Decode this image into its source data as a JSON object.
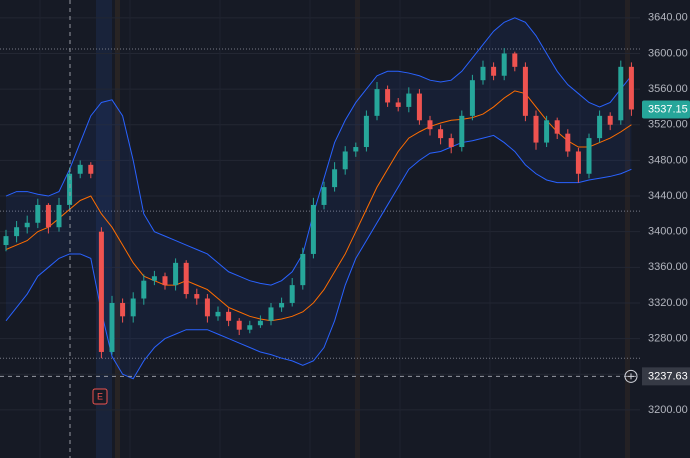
{
  "chart_data": {
    "type": "candlestick",
    "ylim": [
      3146,
      3660
    ],
    "yticks": [
      {
        "value": 3200,
        "label": "3200.00"
      },
      {
        "value": 3240,
        "label": "3240.00"
      },
      {
        "value": 3280,
        "label": "3280.00"
      },
      {
        "value": 3320,
        "label": "3320.00"
      },
      {
        "value": 3360,
        "label": "3360.00"
      },
      {
        "value": 3400,
        "label": "3400.00"
      },
      {
        "value": 3440,
        "label": "3440.00"
      },
      {
        "value": 3480,
        "label": "3480.00"
      },
      {
        "value": 3520,
        "label": "3520.00"
      },
      {
        "value": 3560,
        "label": "3560.00"
      },
      {
        "value": 3600,
        "label": "3600.00"
      },
      {
        "value": 3640,
        "label": "3640.00"
      }
    ],
    "grid": true,
    "up_color": "#26a69a",
    "down_color": "#ef5350",
    "open": [
      3385,
      3395,
      3405,
      3410,
      3430,
      3405,
      3430,
      3465,
      3475,
      3400,
      3265,
      3320,
      3305,
      3325,
      3345,
      3350,
      3340,
      3365,
      3330,
      3325,
      3305,
      3310,
      3300,
      3290,
      3295,
      3300,
      3315,
      3320,
      3340,
      3375,
      3430,
      3450,
      3470,
      3490,
      3495,
      3530,
      3560,
      3545,
      3540,
      3555,
      3525,
      3515,
      3505,
      3495,
      3530,
      3570,
      3585,
      3575,
      3600,
      3585,
      3530,
      3500,
      3525,
      3510,
      3490,
      3465,
      3505,
      3530,
      3525,
      3585
    ],
    "high": [
      3402,
      3412,
      3418,
      3437,
      3432,
      3438,
      3472,
      3480,
      3478,
      3405,
      3328,
      3325,
      3332,
      3352,
      3356,
      3354,
      3370,
      3368,
      3336,
      3330,
      3316,
      3314,
      3303,
      3300,
      3306,
      3320,
      3326,
      3348,
      3382,
      3438,
      3456,
      3478,
      3496,
      3500,
      3536,
      3568,
      3564,
      3550,
      3562,
      3560,
      3530,
      3520,
      3510,
      3536,
      3576,
      3592,
      3590,
      3606,
      3602,
      3590,
      3536,
      3530,
      3528,
      3515,
      3494,
      3510,
      3536,
      3534,
      3592,
      3590
    ],
    "low": [
      3378,
      3388,
      3398,
      3404,
      3398,
      3400,
      3425,
      3460,
      3460,
      3258,
      3262,
      3298,
      3298,
      3318,
      3340,
      3335,
      3334,
      3325,
      3318,
      3298,
      3300,
      3294,
      3284,
      3286,
      3292,
      3295,
      3310,
      3316,
      3335,
      3370,
      3425,
      3445,
      3464,
      3484,
      3490,
      3525,
      3540,
      3535,
      3534,
      3520,
      3508,
      3498,
      3488,
      3490,
      3525,
      3565,
      3570,
      3570,
      3580,
      3524,
      3492,
      3495,
      3504,
      3484,
      3455,
      3460,
      3500,
      3514,
      3520,
      3530
    ],
    "close": [
      3395,
      3405,
      3410,
      3430,
      3405,
      3430,
      3465,
      3475,
      3465,
      3265,
      3320,
      3305,
      3325,
      3345,
      3350,
      3340,
      3365,
      3330,
      3325,
      3305,
      3310,
      3300,
      3290,
      3295,
      3300,
      3315,
      3320,
      3340,
      3375,
      3430,
      3450,
      3470,
      3490,
      3495,
      3530,
      3560,
      3545,
      3540,
      3555,
      3525,
      3515,
      3505,
      3495,
      3530,
      3570,
      3585,
      3575,
      3600,
      3585,
      3530,
      3500,
      3525,
      3510,
      3490,
      3465,
      3505,
      3530,
      3520,
      3585,
      3537.15
    ],
    "series": [
      {
        "name": "upper",
        "color": "#2962ff",
        "values": [
          3440,
          3445,
          3445,
          3442,
          3440,
          3445,
          3470,
          3500,
          3530,
          3545,
          3548,
          3530,
          3480,
          3420,
          3400,
          3395,
          3390,
          3385,
          3380,
          3375,
          3365,
          3355,
          3350,
          3345,
          3342,
          3340,
          3345,
          3355,
          3375,
          3420,
          3460,
          3500,
          3525,
          3545,
          3560,
          3575,
          3580,
          3580,
          3578,
          3575,
          3570,
          3568,
          3570,
          3580,
          3595,
          3610,
          3625,
          3635,
          3640,
          3635,
          3620,
          3600,
          3580,
          3565,
          3555,
          3545,
          3540,
          3545,
          3560,
          3575
        ]
      },
      {
        "name": "basis",
        "color": "#ff6d00",
        "values": [
          3380,
          3385,
          3390,
          3400,
          3405,
          3415,
          3425,
          3435,
          3440,
          3420,
          3405,
          3385,
          3365,
          3350,
          3345,
          3340,
          3340,
          3345,
          3340,
          3335,
          3325,
          3315,
          3310,
          3305,
          3302,
          3300,
          3302,
          3305,
          3310,
          3320,
          3335,
          3355,
          3375,
          3400,
          3425,
          3450,
          3470,
          3490,
          3505,
          3512,
          3518,
          3522,
          3525,
          3526,
          3528,
          3532,
          3540,
          3550,
          3558,
          3555,
          3540,
          3525,
          3512,
          3502,
          3495,
          3495,
          3500,
          3505,
          3512,
          3520
        ]
      },
      {
        "name": "lower",
        "color": "#2962ff",
        "values": [
          3300,
          3315,
          3330,
          3350,
          3360,
          3370,
          3375,
          3375,
          3370,
          3310,
          3260,
          3240,
          3235,
          3255,
          3270,
          3280,
          3285,
          3290,
          3290,
          3290,
          3285,
          3280,
          3275,
          3270,
          3265,
          3262,
          3258,
          3255,
          3250,
          3255,
          3270,
          3300,
          3340,
          3370,
          3390,
          3410,
          3430,
          3450,
          3470,
          3480,
          3488,
          3490,
          3495,
          3500,
          3502,
          3505,
          3508,
          3500,
          3490,
          3475,
          3465,
          3458,
          3455,
          3455,
          3455,
          3458,
          3460,
          3462,
          3465,
          3470
        ]
      }
    ],
    "hlines": [
      3605,
      3423,
      3258
    ],
    "crosshair": 3237.63,
    "event_marker": "E"
  }
}
